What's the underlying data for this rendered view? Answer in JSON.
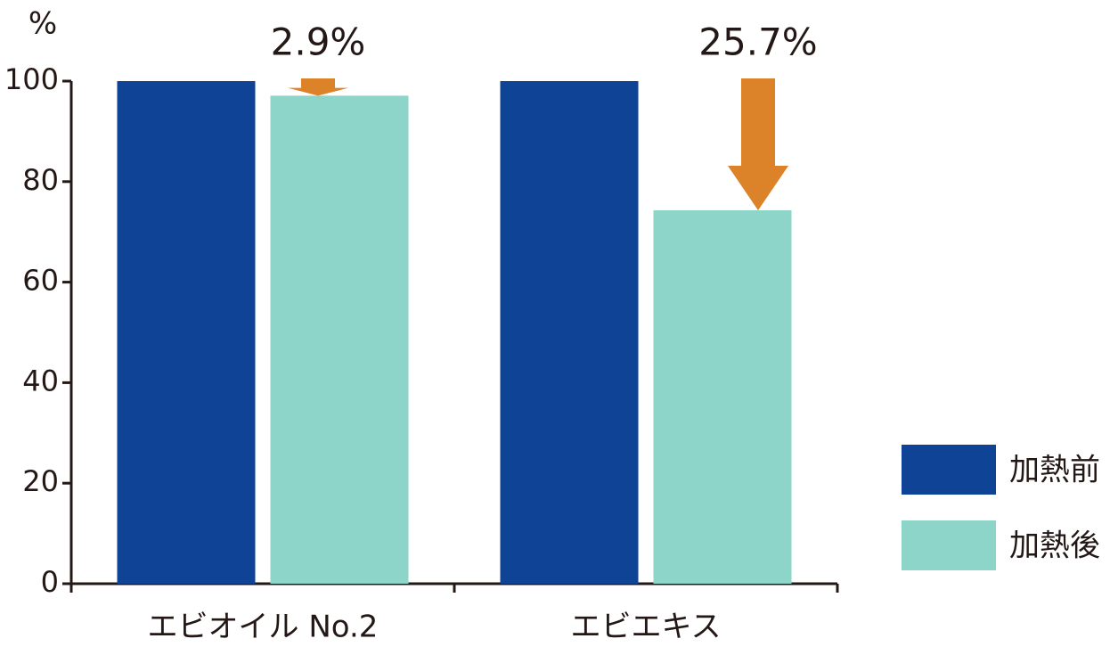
{
  "chart_data": {
    "type": "bar",
    "y_label": "%",
    "categories": [
      "エビオイル No.2",
      "エビエキス"
    ],
    "series": [
      {
        "name": "加熱前",
        "color": "#0f4396",
        "values": [
          100,
          100
        ]
      },
      {
        "name": "加熱後",
        "color": "#8dd5c8",
        "values": [
          97.1,
          74.3
        ]
      }
    ],
    "annotations": [
      "2.9%",
      "25.7%"
    ],
    "arrow_color": "#dc8228",
    "ylim": [
      0,
      100
    ],
    "yticks": [
      0,
      20,
      40,
      60,
      80,
      100
    ],
    "grid": false
  }
}
